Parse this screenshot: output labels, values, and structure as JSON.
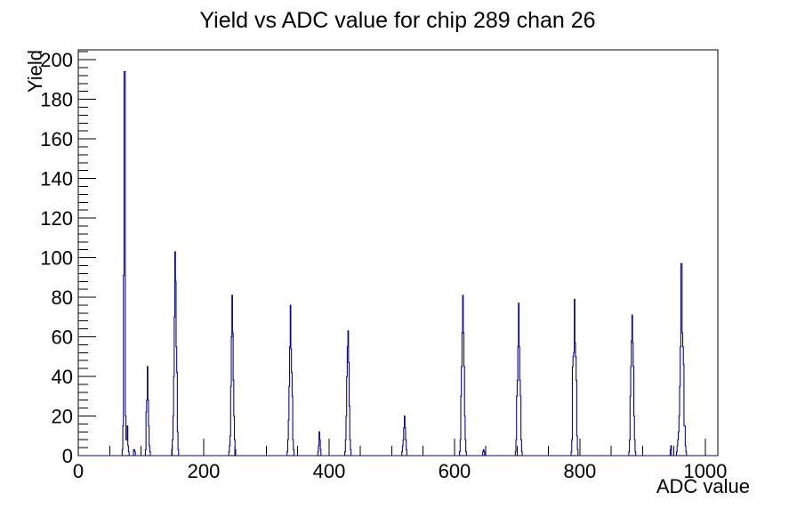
{
  "chart_data": {
    "type": "bar",
    "style": "root-histogram-step-outline",
    "title": "Yield vs ADC value for chip 289 chan 26",
    "xlabel": "ADC value",
    "ylabel": "Yield",
    "xlim": [
      0,
      1020
    ],
    "ylim": [
      0,
      205
    ],
    "x_major_ticks": [
      0,
      200,
      400,
      600,
      800,
      1000
    ],
    "x_minor_step": 50,
    "y_major_ticks": [
      0,
      20,
      40,
      60,
      80,
      100,
      120,
      140,
      160,
      180,
      200
    ],
    "y_minor_step": 4,
    "grid": "off",
    "legend": "none",
    "line_color": "#0a0a8a",
    "frame_color": "#000000",
    "background_color": "#ffffff",
    "peaks": [
      {
        "adc": 73,
        "yield": 194
      },
      {
        "adc": 110,
        "yield": 45
      },
      {
        "adc": 154,
        "yield": 103
      },
      {
        "adc": 245,
        "yield": 81
      },
      {
        "adc": 338,
        "yield": 76
      },
      {
        "adc": 384,
        "yield": 12
      },
      {
        "adc": 430,
        "yield": 63
      },
      {
        "adc": 520,
        "yield": 20
      },
      {
        "adc": 613,
        "yield": 81
      },
      {
        "adc": 702,
        "yield": 77
      },
      {
        "adc": 791,
        "yield": 79
      },
      {
        "adc": 883,
        "yield": 71
      },
      {
        "adc": 961,
        "yield": 97
      }
    ],
    "bins": [
      [
        70,
        3
      ],
      [
        71,
        15
      ],
      [
        72,
        91
      ],
      [
        73,
        194
      ],
      [
        74,
        194
      ],
      [
        75,
        20
      ],
      [
        76,
        8
      ],
      [
        77,
        8
      ],
      [
        78,
        15
      ],
      [
        79,
        5
      ],
      [
        80,
        2
      ],
      [
        88,
        3
      ],
      [
        89,
        3
      ],
      [
        90,
        2
      ],
      [
        107,
        3
      ],
      [
        108,
        22
      ],
      [
        109,
        28
      ],
      [
        110,
        45
      ],
      [
        111,
        28
      ],
      [
        112,
        15
      ],
      [
        113,
        5
      ],
      [
        114,
        2
      ],
      [
        149,
        3
      ],
      [
        150,
        8
      ],
      [
        151,
        20
      ],
      [
        152,
        40
      ],
      [
        153,
        70
      ],
      [
        154,
        103
      ],
      [
        155,
        88
      ],
      [
        156,
        55
      ],
      [
        157,
        42
      ],
      [
        158,
        12
      ],
      [
        159,
        3
      ],
      [
        240,
        2
      ],
      [
        241,
        5
      ],
      [
        242,
        10
      ],
      [
        243,
        35
      ],
      [
        244,
        60
      ],
      [
        245,
        81
      ],
      [
        246,
        62
      ],
      [
        247,
        38
      ],
      [
        248,
        20
      ],
      [
        249,
        8
      ],
      [
        250,
        3
      ],
      [
        333,
        2
      ],
      [
        334,
        8
      ],
      [
        335,
        18
      ],
      [
        336,
        35
      ],
      [
        337,
        55
      ],
      [
        338,
        76
      ],
      [
        339,
        54
      ],
      [
        340,
        42
      ],
      [
        341,
        30
      ],
      [
        342,
        8
      ],
      [
        343,
        3
      ],
      [
        382,
        2
      ],
      [
        383,
        5
      ],
      [
        384,
        12
      ],
      [
        385,
        8
      ],
      [
        386,
        3
      ],
      [
        425,
        2
      ],
      [
        426,
        8
      ],
      [
        427,
        20
      ],
      [
        428,
        40
      ],
      [
        429,
        55
      ],
      [
        430,
        63
      ],
      [
        431,
        47
      ],
      [
        432,
        25
      ],
      [
        433,
        8
      ],
      [
        434,
        3
      ],
      [
        516,
        2
      ],
      [
        517,
        5
      ],
      [
        518,
        8
      ],
      [
        519,
        14
      ],
      [
        520,
        20
      ],
      [
        521,
        14
      ],
      [
        522,
        8
      ],
      [
        523,
        3
      ],
      [
        608,
        2
      ],
      [
        609,
        8
      ],
      [
        610,
        30
      ],
      [
        611,
        45
      ],
      [
        612,
        62
      ],
      [
        613,
        81
      ],
      [
        614,
        62
      ],
      [
        615,
        45
      ],
      [
        616,
        20
      ],
      [
        617,
        8
      ],
      [
        618,
        2
      ],
      [
        645,
        2
      ],
      [
        646,
        3
      ],
      [
        647,
        2
      ],
      [
        697,
        2
      ],
      [
        698,
        8
      ],
      [
        699,
        30
      ],
      [
        700,
        38
      ],
      [
        701,
        55
      ],
      [
        702,
        77
      ],
      [
        703,
        55
      ],
      [
        704,
        38
      ],
      [
        705,
        30
      ],
      [
        706,
        8
      ],
      [
        707,
        2
      ],
      [
        786,
        2
      ],
      [
        787,
        8
      ],
      [
        788,
        45
      ],
      [
        789,
        50
      ],
      [
        790,
        52
      ],
      [
        791,
        79
      ],
      [
        792,
        57
      ],
      [
        793,
        50
      ],
      [
        794,
        38
      ],
      [
        795,
        10
      ],
      [
        796,
        3
      ],
      [
        878,
        2
      ],
      [
        879,
        8
      ],
      [
        880,
        30
      ],
      [
        881,
        45
      ],
      [
        882,
        58
      ],
      [
        883,
        71
      ],
      [
        884,
        57
      ],
      [
        885,
        45
      ],
      [
        886,
        20
      ],
      [
        887,
        8
      ],
      [
        888,
        2
      ],
      [
        944,
        3
      ],
      [
        945,
        5
      ],
      [
        954,
        2
      ],
      [
        955,
        5
      ],
      [
        956,
        8
      ],
      [
        957,
        12
      ],
      [
        958,
        20
      ],
      [
        959,
        35
      ],
      [
        960,
        55
      ],
      [
        961,
        97
      ],
      [
        962,
        97
      ],
      [
        963,
        62
      ],
      [
        964,
        55
      ],
      [
        965,
        46
      ],
      [
        966,
        15
      ],
      [
        967,
        15
      ],
      [
        968,
        5
      ],
      [
        969,
        2
      ]
    ]
  }
}
